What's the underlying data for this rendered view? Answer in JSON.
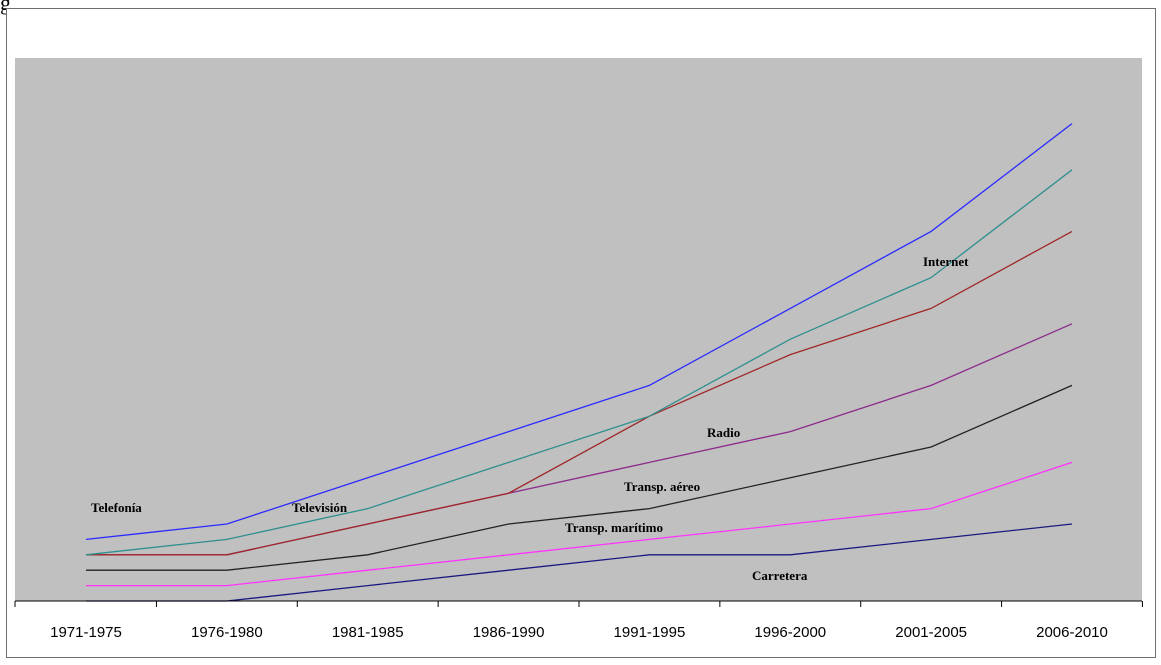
{
  "header": {
    "fragment": "g"
  },
  "chart_data": {
    "type": "line",
    "title": "",
    "xlabel": "",
    "ylabel": "",
    "categories": [
      "1971-1975",
      "1976-1980",
      "1981-1985",
      "1986-1990",
      "1991-1995",
      "1996-2000",
      "2001-2005",
      "2006-2010"
    ],
    "ylim": [
      0,
      32
    ],
    "grid": false,
    "legend": "none",
    "series": [
      {
        "name": "Telefonía",
        "color": "#2b2bff",
        "values": [
          4,
          5,
          8,
          11,
          14,
          19,
          24,
          31
        ]
      },
      {
        "name": "Televisión",
        "color": "#2f8f8f",
        "values": [
          3,
          4,
          6,
          9,
          12,
          17,
          21,
          28
        ]
      },
      {
        "name": "Internet",
        "color": "#a02828",
        "values": [
          3,
          3,
          5,
          7,
          12,
          16,
          19,
          24
        ]
      },
      {
        "name": "Radio",
        "color": "#8b2a8b",
        "values": [
          3,
          3,
          5,
          7,
          9,
          11,
          14,
          18
        ]
      },
      {
        "name": "Transp. aéreo",
        "color": "#222222",
        "values": [
          2,
          2,
          3,
          5,
          6,
          8,
          10,
          14
        ]
      },
      {
        "name": "Transp. marítimo",
        "color": "#ff33ff",
        "values": [
          1,
          1,
          2,
          3,
          4,
          5,
          6,
          9
        ]
      },
      {
        "name": "Carretera",
        "color": "#1a1a80",
        "values": [
          0,
          0,
          1,
          2,
          3,
          3,
          4,
          5
        ]
      }
    ]
  }
}
